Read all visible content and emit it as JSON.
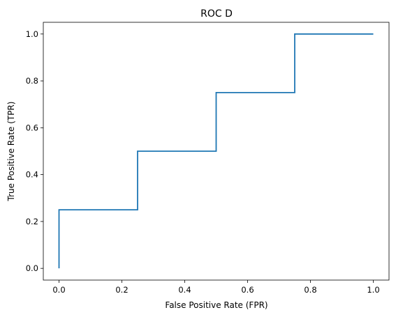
{
  "chart_data": {
    "type": "line",
    "title": "ROC D",
    "xlabel": "False Positive Rate (FPR)",
    "ylabel": "True Positive Rate (TPR)",
    "xlim": [
      -0.05,
      1.05
    ],
    "ylim": [
      -0.05,
      1.05
    ],
    "xticks": [
      0.0,
      0.2,
      0.4,
      0.6,
      0.8,
      1.0
    ],
    "yticks": [
      0.0,
      0.2,
      0.4,
      0.6,
      0.8,
      1.0
    ],
    "xtick_labels": [
      "0.0",
      "0.2",
      "0.4",
      "0.6",
      "0.8",
      "1.0"
    ],
    "ytick_labels": [
      "0.0",
      "0.2",
      "0.4",
      "0.6",
      "0.8",
      "1.0"
    ],
    "grid": false,
    "series": [
      {
        "name": "ROC",
        "color": "#1f77b4",
        "x": [
          0.0,
          0.0,
          0.25,
          0.25,
          0.5,
          0.5,
          0.75,
          0.75,
          1.0
        ],
        "y": [
          0.0,
          0.25,
          0.25,
          0.5,
          0.5,
          0.75,
          0.75,
          1.0,
          1.0
        ]
      }
    ]
  }
}
